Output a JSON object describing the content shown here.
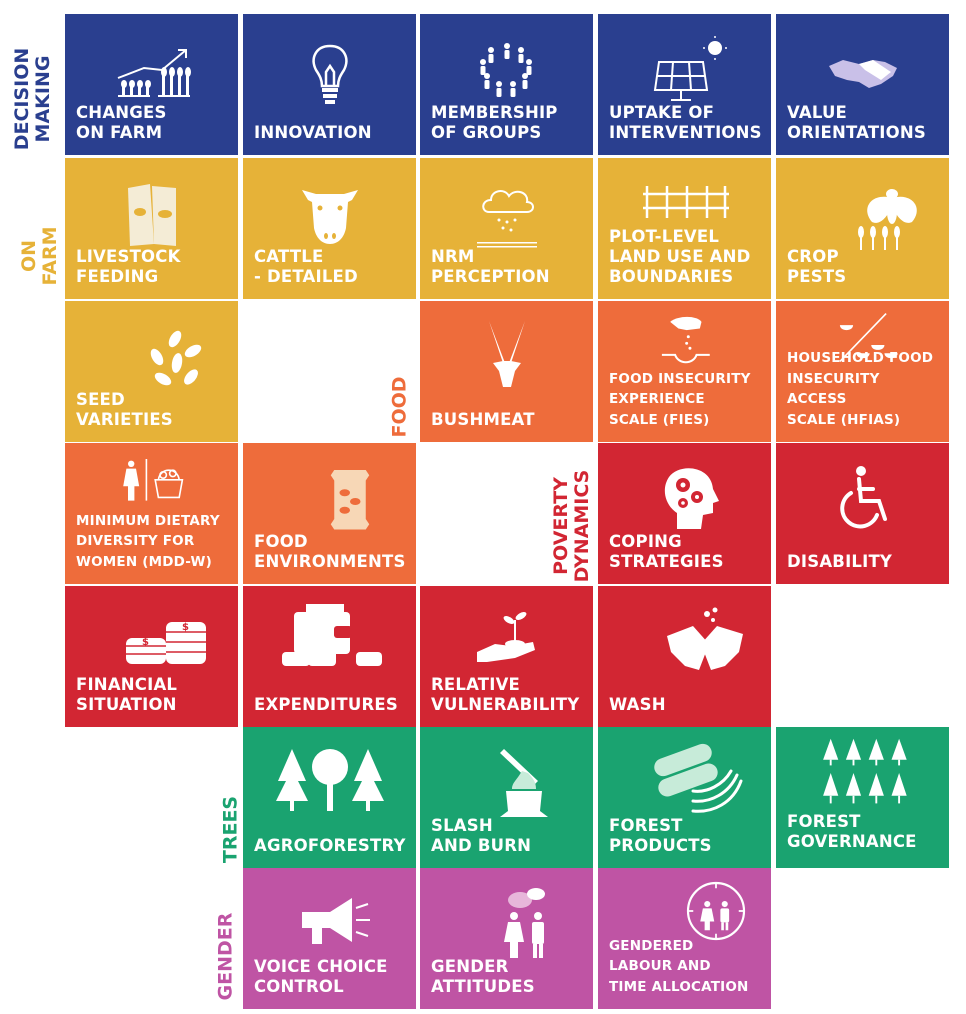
{
  "colors": {
    "decision_making": "#2a3f8f",
    "on_farm": "#e6b238",
    "food": "#ee6c3b",
    "poverty_dynamics": "#d22633",
    "trees": "#1aa370",
    "gender": "#bf54a4"
  },
  "categories": {
    "decision_making": "DECISION\nMAKING",
    "on_farm": "ON FARM",
    "food": "FOOD",
    "poverty_dynamics": "POVERTY\nDYNAMICS",
    "trees": "TREES",
    "gender": "GENDER"
  },
  "tiles": {
    "changes_on_farm": {
      "label": "CHANGES\nON FARM",
      "icon": "crop-growth-icon"
    },
    "innovation": {
      "label": "INNOVATION",
      "icon": "lightbulb-icon"
    },
    "membership_of_groups": {
      "label": "MEMBERSHIP\nOF GROUPS",
      "icon": "people-circle-icon"
    },
    "uptake_of_interventions": {
      "label": "UPTAKE OF\nINTERVENTIONS",
      "icon": "solar-panel-icon"
    },
    "value_orientations": {
      "label": "VALUE\nORIENTATIONS",
      "icon": "handshake-icon"
    },
    "livestock_feeding": {
      "label": "LIVESTOCK\nFEEDING",
      "icon": "feed-bags-icon"
    },
    "cattle_detailed": {
      "label": "CATTLE\n- DETAILED",
      "icon": "cow-head-icon"
    },
    "nrm_perception": {
      "label": "NRM\nPERCEPTION",
      "icon": "rain-cloud-icon"
    },
    "plot_level_land_use": {
      "label": "PLOT-LEVEL\nLAND USE AND\nBOUNDARIES",
      "icon": "fence-icon"
    },
    "crop_pests": {
      "label": "CROP\nPESTS",
      "icon": "insect-pest-icon"
    },
    "seed_varieties": {
      "label": "SEED\nVARIETIES",
      "icon": "seeds-icon"
    },
    "bushmeat": {
      "label": "BUSHMEAT",
      "icon": "antelope-head-icon"
    },
    "fies": {
      "label": "FOOD INSECURITY\nEXPERIENCE\nSCALE (FIES)",
      "icon": "hand-sowing-icon"
    },
    "hfias": {
      "label": "HOUSEHOLD FOOD\nINSECURITY ACCESS\nSCALE (HFIAS)",
      "icon": "food-bowls-icon"
    },
    "mdd_w": {
      "label": "MINIMUM DIETARY\nDIVERSITY FOR\nWOMEN (MDD-W)",
      "icon": "woman-basket-icon"
    },
    "food_environments": {
      "label": "FOOD\nENVIRONMENTS",
      "icon": "food-packet-icon"
    },
    "coping_strategies": {
      "label": "COPING\nSTRATEGIES",
      "icon": "head-gears-icon"
    },
    "disability": {
      "label": "DISABILITY",
      "icon": "wheelchair-icon"
    },
    "financial_situation": {
      "label": "FINANCIAL\nSITUATION",
      "icon": "coin-stacks-icon"
    },
    "expenditures": {
      "label": "EXPENDITURES",
      "icon": "wallet-icon"
    },
    "relative_vulnerability": {
      "label": "RELATIVE\nVULNERABILITY",
      "icon": "hand-sprout-icon"
    },
    "wash": {
      "label": "WASH",
      "icon": "washing-hands-icon"
    },
    "agroforestry": {
      "label": "AGROFORESTRY",
      "icon": "trees-icon"
    },
    "slash_and_burn": {
      "label": "SLASH\nAND BURN",
      "icon": "axe-stump-icon"
    },
    "forest_products": {
      "label": "FOREST\nPRODUCTS",
      "icon": "logs-bananas-icon"
    },
    "forest_governance": {
      "label": "FOREST\nGOVERNANCE",
      "icon": "pine-forest-icon"
    },
    "voice_choice_control": {
      "label": "VOICE CHOICE\nCONTROL",
      "icon": "megaphone-icon"
    },
    "gender_attitudes": {
      "label": "GENDER\nATTITUDES",
      "icon": "couple-speech-icon"
    },
    "gendered_labour": {
      "label": "GENDERED\nLABOUR AND\nTIME ALLOCATION",
      "icon": "clock-couple-icon"
    }
  }
}
